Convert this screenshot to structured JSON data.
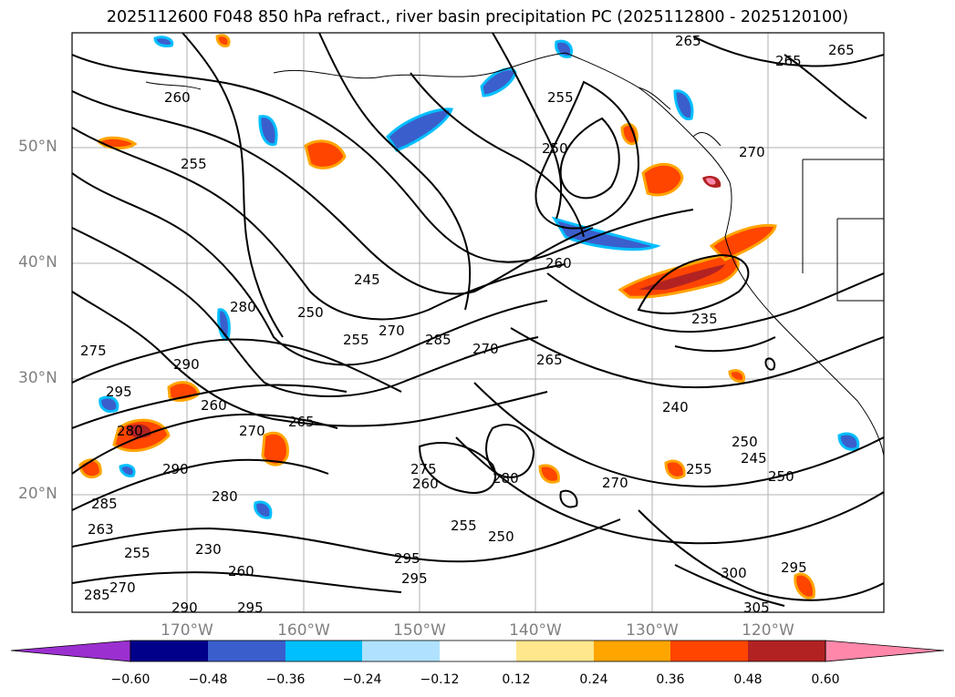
{
  "title": "2025112600 F048 850 hPa refract., river basin precipitation PC (2025112800 - 2025120100)",
  "lat_labels": [
    "50°N",
    "40°N",
    "30°N",
    "20°N"
  ],
  "lon_labels": [
    "170°W",
    "160°W",
    "150°W",
    "140°W",
    "130°W",
    "120°W"
  ],
  "colorbar": {
    "ticks": [
      "−0.60",
      "−0.48",
      "−0.36",
      "−0.24",
      "−0.12",
      "0.12",
      "0.24",
      "0.36",
      "0.48",
      "0.60"
    ],
    "colors": [
      "#9b30d0",
      "#00008b",
      "#3a5fcd",
      "#00bfff",
      "#b0e2ff",
      "#ffffff",
      "#ffe78c",
      "#ffa500",
      "#ff4500",
      "#b22222",
      "#ff88aa"
    ]
  },
  "contour_labels": [
    "265",
    "265",
    "265",
    "260",
    "255",
    "255",
    "250",
    "270",
    "245",
    "260",
    "280",
    "250",
    "255",
    "270",
    "285",
    "235",
    "275",
    "295",
    "290",
    "260",
    "270",
    "265",
    "280",
    "290",
    "285",
    "280",
    "263",
    "255",
    "230",
    "260",
    "285",
    "270",
    "290",
    "295",
    "275",
    "260",
    "280",
    "250",
    "255",
    "265",
    "270",
    "240",
    "250",
    "245",
    "250",
    "255",
    "270",
    "295",
    "300",
    "295",
    "305",
    "295"
  ]
}
